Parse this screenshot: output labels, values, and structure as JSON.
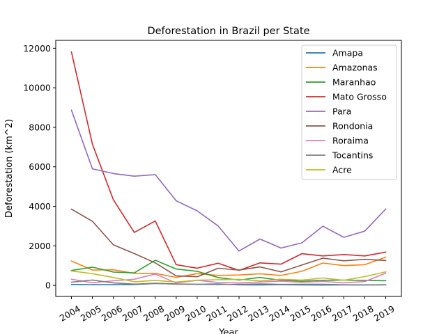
{
  "chart_data": {
    "type": "line",
    "title": "Deforestation in Brazil per State",
    "xlabel": "Year",
    "ylabel": "Deforestation (km^2)",
    "x": [
      2004,
      2005,
      2006,
      2007,
      2008,
      2009,
      2010,
      2011,
      2012,
      2013,
      2014,
      2015,
      2016,
      2017,
      2018,
      2019
    ],
    "x_tick_labels": [
      "2004",
      "2005",
      "2006",
      "2007",
      "2008",
      "2009",
      "2010",
      "2011",
      "2012",
      "2013",
      "2014",
      "2015",
      "2016",
      "2017",
      "2018",
      "2019"
    ],
    "ylim": [
      -560,
      12400
    ],
    "y_ticks": [
      0,
      2000,
      4000,
      6000,
      8000,
      10000,
      12000
    ],
    "y_tick_labels": [
      "0",
      "2000",
      "4000",
      "6000",
      "8000",
      "10000",
      "12000"
    ],
    "grid": false,
    "legend_position": "top-right",
    "series": [
      {
        "name": "Amapa",
        "color": "#1f77b4",
        "values": [
          46,
          33,
          30,
          39,
          100,
          70,
          53,
          66,
          27,
          23,
          31,
          25,
          17,
          24,
          24,
          32
        ]
      },
      {
        "name": "Amazonas",
        "color": "#ff7f0e",
        "values": [
          1232,
          775,
          788,
          610,
          604,
          405,
          595,
          502,
          523,
          583,
          500,
          712,
          1129,
          1001,
          1045,
          1421
        ]
      },
      {
        "name": "Maranhao",
        "color": "#2ca02c",
        "values": [
          755,
          922,
          674,
          631,
          1271,
          828,
          712,
          396,
          269,
          403,
          257,
          209,
          258,
          265,
          253,
          237
        ]
      },
      {
        "name": "Mato Grosso",
        "color": "#d62728",
        "values": [
          11814,
          7145,
          4333,
          2678,
          3258,
          1049,
          871,
          1120,
          757,
          1139,
          1075,
          1601,
          1489,
          1561,
          1490,
          1685
        ]
      },
      {
        "name": "Para",
        "color": "#9467bd",
        "values": [
          8870,
          5899,
          5659,
          5526,
          5607,
          4281,
          3770,
          3008,
          1741,
          2346,
          1887,
          2153,
          2992,
          2433,
          2744,
          3862
        ]
      },
      {
        "name": "Rondonia",
        "color": "#8c564b",
        "values": [
          3858,
          3244,
          2049,
          1611,
          1136,
          482,
          435,
          865,
          773,
          932,
          684,
          1030,
          1376,
          1243,
          1316,
          1257
        ]
      },
      {
        "name": "Roraima",
        "color": "#e377c2",
        "values": [
          311,
          133,
          231,
          309,
          574,
          121,
          256,
          141,
          124,
          170,
          219,
          156,
          202,
          132,
          195,
          617
        ]
      },
      {
        "name": "Tocantins",
        "color": "#7f7f7f",
        "values": [
          158,
          271,
          124,
          63,
          107,
          61,
          49,
          40,
          52,
          74,
          50,
          57,
          58,
          31,
          25,
          21
        ]
      },
      {
        "name": "Acre",
        "color": "#bcbd22",
        "values": [
          728,
          592,
          398,
          184,
          254,
          167,
          259,
          280,
          305,
          221,
          309,
          264,
          372,
          257,
          444,
          682
        ]
      }
    ]
  }
}
